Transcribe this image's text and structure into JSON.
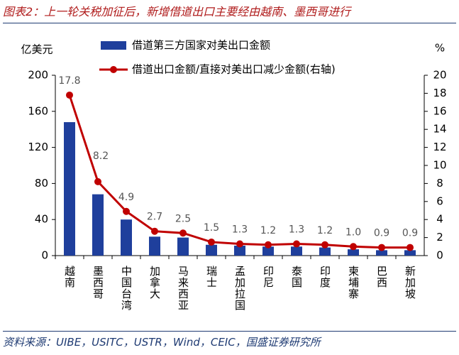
{
  "chart_data": {
    "type": "bar-line",
    "title": "图表2：上一轮关税加征后，新增借道出口主要经由越南、墨西哥进行",
    "source": "资料来源：UIBE，USITC，USTR，Wind，CEIC，国盛证券研究所",
    "y_unit": "亿美元",
    "y2_unit": "%",
    "categories": [
      "越南",
      "墨西哥",
      "中国台湾",
      "加拿大",
      "马来西亚",
      "瑞士",
      "孟加拉国",
      "印尼",
      "泰国",
      "印度",
      "柬埔寨",
      "巴西",
      "新加坡"
    ],
    "series": [
      {
        "name": "借道第三方国家对美出口金额",
        "color": "#1f3f9c",
        "type": "bar",
        "values": [
          148,
          68,
          40,
          21,
          20,
          12,
          11,
          10,
          10,
          9,
          7,
          6,
          6
        ]
      },
      {
        "name": "借道出口金额/直接对美出口减少金额(右轴)",
        "color": "#c00000",
        "type": "line",
        "axis": "y2",
        "values": [
          17.8,
          8.2,
          4.9,
          2.7,
          2.5,
          1.5,
          1.3,
          1.2,
          1.3,
          1.2,
          1.0,
          0.9,
          0.9
        ],
        "value_labels": [
          "17.8",
          "8.2",
          "4.9",
          "2.7",
          "2.5",
          "1.5",
          "1.3",
          "1.2",
          "1.3",
          "1.2",
          "1.0",
          "0.9",
          "0.9"
        ]
      }
    ],
    "ylim": [
      0,
      200
    ],
    "yticks": [
      0,
      40,
      80,
      120,
      160,
      200
    ],
    "y2lim": [
      0,
      20
    ],
    "y2ticks": [
      0,
      2,
      4,
      6,
      8,
      10,
      12,
      14,
      16,
      18,
      20
    ],
    "legend": "top"
  }
}
